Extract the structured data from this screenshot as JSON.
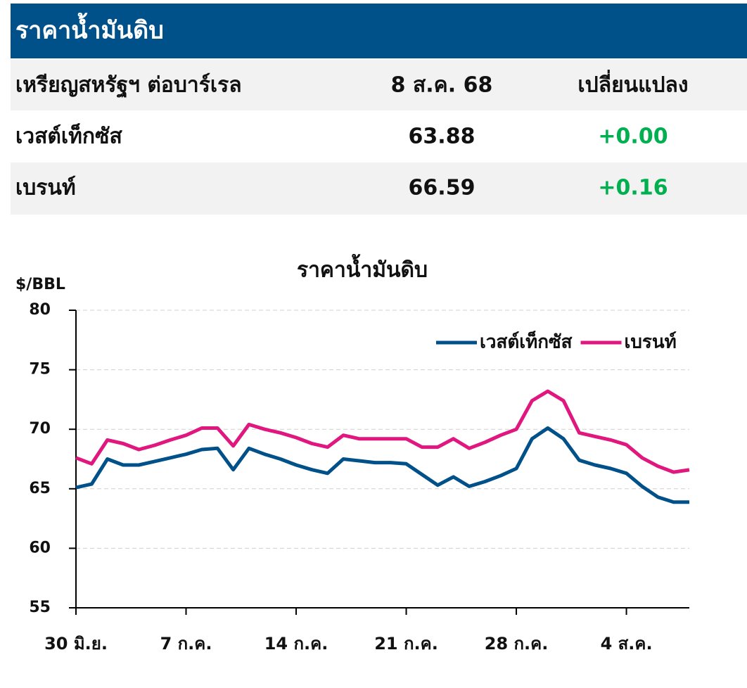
{
  "header": {
    "title": "ราคาน้ำมันดิบ"
  },
  "table": {
    "header": [
      "เหรียญสหรัฐฯ ต่อบาร์เรล",
      "8 ส.ค. 68",
      "เปลี่ยนแปลง"
    ],
    "rows": [
      [
        "เวสต์เท็กซัส",
        "63.88",
        "+0.00"
      ],
      [
        "เบรนท์",
        "66.59",
        "+0.16"
      ]
    ]
  },
  "chart_data": {
    "type": "line",
    "title": "ราคาน้ำมันดิบ",
    "y_label": "$/BBL",
    "categories": [
      "30 มิ.ย.",
      null,
      null,
      null,
      null,
      null,
      null,
      "7 ก.ค.",
      null,
      null,
      null,
      null,
      null,
      null,
      "14 ก.ค.",
      null,
      null,
      null,
      null,
      null,
      null,
      "21 ก.ค.",
      null,
      null,
      null,
      null,
      null,
      null,
      "28 ก.ค.",
      null,
      null,
      null,
      null,
      null,
      null,
      "4 ส.ค.",
      null,
      null,
      null,
      null
    ],
    "series": [
      {
        "name": "เวสต์เท็กซัส",
        "color": "#00508a",
        "values": [
          65.1,
          65.4,
          67.5,
          67.0,
          67.0,
          67.3,
          67.6,
          67.9,
          68.3,
          68.4,
          66.6,
          68.4,
          67.9,
          67.5,
          67.0,
          66.6,
          66.3,
          67.5,
          67.35,
          67.2,
          67.2,
          67.1,
          66.2,
          65.3,
          66.0,
          65.2,
          65.6,
          66.1,
          66.7,
          69.2,
          70.1,
          69.2,
          67.4,
          67.0,
          66.7,
          66.3,
          65.2,
          64.3,
          63.88,
          63.88
        ]
      },
      {
        "name": "เบรนท์",
        "color": "#e0177e",
        "values": [
          67.6,
          67.1,
          69.1,
          68.8,
          68.3,
          68.65,
          69.1,
          69.5,
          70.1,
          70.1,
          68.6,
          70.4,
          70.0,
          69.7,
          69.3,
          68.8,
          68.5,
          69.5,
          69.2,
          69.2,
          69.2,
          69.2,
          68.5,
          68.5,
          69.2,
          68.4,
          68.9,
          69.5,
          70.0,
          72.4,
          73.2,
          72.4,
          69.7,
          69.4,
          69.1,
          68.7,
          67.6,
          66.9,
          66.4,
          66.59
        ]
      }
    ],
    "ylim": [
      55,
      80
    ],
    "yticks": [
      55,
      60,
      65,
      70,
      75,
      80
    ],
    "grid": true,
    "legend": "top-right"
  }
}
